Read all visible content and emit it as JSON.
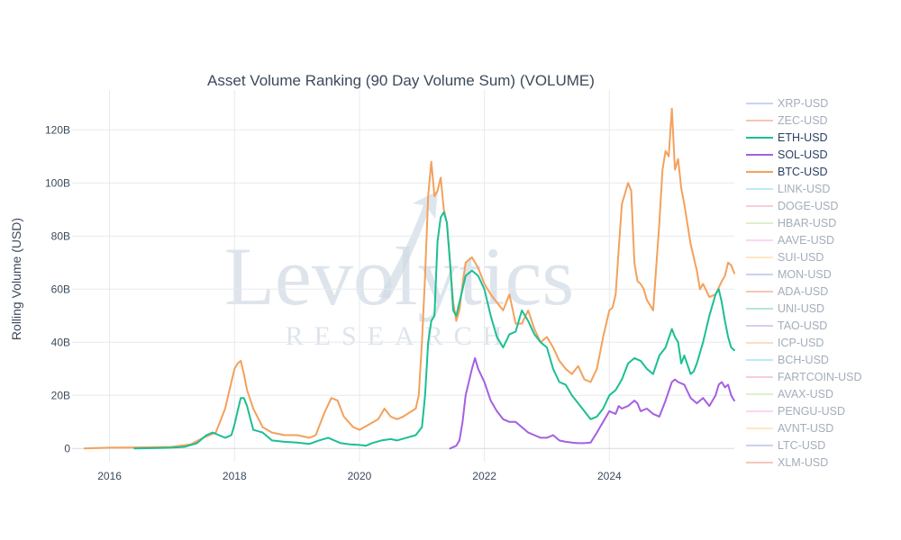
{
  "chart_data": {
    "type": "line",
    "title": "Asset Volume Ranking (90 Day Volume Sum) (VOLUME)",
    "ylabel": "Rolling Volume (USD)",
    "xlabel": "",
    "xlim": [
      2015.4,
      2026.0
    ],
    "ylim": [
      -5,
      135
    ],
    "x_ticks": [
      2016,
      2018,
      2020,
      2022,
      2024
    ],
    "x_tick_labels": [
      "2016",
      "2018",
      "2020",
      "2022",
      "2024"
    ],
    "y_ticks": [
      0,
      20,
      40,
      60,
      80,
      100,
      120
    ],
    "y_tick_labels": [
      "0",
      "20B",
      "40B",
      "60B",
      "80B",
      "100B",
      "120B"
    ],
    "grid": true,
    "legend_position": "right",
    "watermark": {
      "main": "Levolytics",
      "sub": "RESEARCH"
    },
    "legend": [
      {
        "name": "XRP-USD",
        "color": "#b5bfe6",
        "active": false
      },
      {
        "name": "ZEC-USD",
        "color": "#f2ad9e",
        "active": false
      },
      {
        "name": "ETH-USD",
        "color": "#1bbf94",
        "active": true
      },
      {
        "name": "SOL-USD",
        "color": "#a55fe0",
        "active": true
      },
      {
        "name": "BTC-USD",
        "color": "#f3a15c",
        "active": true
      },
      {
        "name": "LINK-USD",
        "color": "#9fe3f0",
        "active": false
      },
      {
        "name": "DOGE-USD",
        "color": "#f4b8c9",
        "active": false
      },
      {
        "name": "HBAR-USD",
        "color": "#cdebb8",
        "active": false
      },
      {
        "name": "AAVE-USD",
        "color": "#f8c6ef",
        "active": false
      },
      {
        "name": "SUI-USD",
        "color": "#fbe0a6",
        "active": false
      },
      {
        "name": "MON-USD",
        "color": "#b5bfe6",
        "active": false
      },
      {
        "name": "ADA-USD",
        "color": "#f2ad9e",
        "active": false
      },
      {
        "name": "UNI-USD",
        "color": "#96dcc5",
        "active": false
      },
      {
        "name": "TAO-USD",
        "color": "#cdb5ef",
        "active": false
      },
      {
        "name": "ICP-USD",
        "color": "#f7cfad",
        "active": false
      },
      {
        "name": "BCH-USD",
        "color": "#9fe3f0",
        "active": false
      },
      {
        "name": "FARTCOIN-USD",
        "color": "#f4b8c9",
        "active": false
      },
      {
        "name": "AVAX-USD",
        "color": "#cdebb8",
        "active": false
      },
      {
        "name": "PENGU-USD",
        "color": "#f8c6ef",
        "active": false
      },
      {
        "name": "AVNT-USD",
        "color": "#fbe0a6",
        "active": false
      },
      {
        "name": "LTC-USD",
        "color": "#b5bfe6",
        "active": false
      },
      {
        "name": "XLM-USD",
        "color": "#f2ad9e",
        "active": false
      }
    ],
    "series": [
      {
        "name": "BTC-USD",
        "color": "#f3a15c",
        "x": [
          2015.6,
          2016.0,
          2016.5,
          2017.0,
          2017.3,
          2017.5,
          2017.7,
          2017.85,
          2017.95,
          2018.0,
          2018.05,
          2018.1,
          2018.15,
          2018.2,
          2018.3,
          2018.45,
          2018.6,
          2018.8,
          2019.0,
          2019.2,
          2019.3,
          2019.45,
          2019.55,
          2019.65,
          2019.75,
          2019.9,
          2020.0,
          2020.15,
          2020.3,
          2020.4,
          2020.5,
          2020.6,
          2020.7,
          2020.9,
          2020.95,
          2021.0,
          2021.05,
          2021.1,
          2021.15,
          2021.2,
          2021.25,
          2021.3,
          2021.35,
          2021.4,
          2021.45,
          2021.5,
          2021.55,
          2021.6,
          2021.65,
          2021.7,
          2021.8,
          2021.9,
          2022.0,
          2022.1,
          2022.2,
          2022.3,
          2022.4,
          2022.5,
          2022.6,
          2022.7,
          2022.8,
          2022.9,
          2023.0,
          2023.1,
          2023.2,
          2023.3,
          2023.4,
          2023.5,
          2023.6,
          2023.7,
          2023.8,
          2023.9,
          2024.0,
          2024.05,
          2024.1,
          2024.15,
          2024.2,
          2024.3,
          2024.35,
          2024.4,
          2024.45,
          2024.5,
          2024.55,
          2024.6,
          2024.7,
          2024.8,
          2024.85,
          2024.9,
          2024.95,
          2025.0,
          2025.05,
          2025.1,
          2025.15,
          2025.2,
          2025.3,
          2025.4,
          2025.45,
          2025.5,
          2025.6,
          2025.7,
          2025.8,
          2025.85,
          2025.9,
          2025.95,
          2026.0
        ],
        "values": [
          0,
          0.3,
          0.4,
          0.6,
          1.5,
          4,
          6,
          15,
          25,
          30,
          32,
          33,
          28,
          22,
          15,
          8,
          6,
          5,
          5,
          4,
          5,
          14,
          19,
          18,
          12,
          8,
          7,
          9,
          11,
          15,
          12,
          11,
          12,
          15,
          20,
          40,
          65,
          95,
          108,
          95,
          97,
          102,
          90,
          85,
          70,
          55,
          48,
          52,
          62,
          70,
          72,
          68,
          62,
          58,
          55,
          52,
          58,
          47,
          47,
          52,
          45,
          40,
          42,
          38,
          33,
          30,
          28,
          31,
          26,
          25,
          30,
          42,
          52,
          53,
          58,
          75,
          92,
          100,
          97,
          70,
          63,
          62,
          60,
          56,
          52,
          85,
          105,
          112,
          110,
          128,
          105,
          109,
          98,
          92,
          77,
          67,
          60,
          62,
          57,
          58,
          63,
          65,
          70,
          69,
          66
        ]
      },
      {
        "name": "ETH-USD",
        "color": "#1bbf94",
        "x": [
          2016.4,
          2016.8,
          2017.0,
          2017.2,
          2017.4,
          2017.55,
          2017.65,
          2017.75,
          2017.85,
          2017.95,
          2018.0,
          2018.05,
          2018.1,
          2018.15,
          2018.2,
          2018.3,
          2018.45,
          2018.6,
          2018.8,
          2019.0,
          2019.2,
          2019.35,
          2019.5,
          2019.6,
          2019.7,
          2019.85,
          2020.0,
          2020.1,
          2020.2,
          2020.35,
          2020.5,
          2020.6,
          2020.75,
          2020.9,
          2021.0,
          2021.05,
          2021.1,
          2021.15,
          2021.2,
          2021.25,
          2021.3,
          2021.35,
          2021.4,
          2021.45,
          2021.5,
          2021.55,
          2021.6,
          2021.65,
          2021.7,
          2021.8,
          2021.9,
          2022.0,
          2022.1,
          2022.2,
          2022.3,
          2022.4,
          2022.5,
          2022.6,
          2022.7,
          2022.8,
          2022.9,
          2023.0,
          2023.1,
          2023.2,
          2023.3,
          2023.4,
          2023.5,
          2023.6,
          2023.7,
          2023.8,
          2023.9,
          2024.0,
          2024.1,
          2024.2,
          2024.3,
          2024.4,
          2024.5,
          2024.6,
          2024.7,
          2024.8,
          2024.9,
          2025.0,
          2025.05,
          2025.1,
          2025.15,
          2025.2,
          2025.3,
          2025.35,
          2025.4,
          2025.5,
          2025.6,
          2025.7,
          2025.75,
          2025.8,
          2025.85,
          2025.9,
          2025.95,
          2026.0
        ],
        "values": [
          0,
          0.2,
          0.3,
          0.6,
          2,
          5,
          6,
          5,
          4,
          5,
          9,
          14,
          19,
          19,
          16,
          7,
          6,
          3,
          2.5,
          2.2,
          1.7,
          3,
          4,
          3,
          2,
          1.5,
          1.3,
          1,
          2,
          3,
          3.5,
          3,
          4,
          5,
          8,
          20,
          40,
          48,
          50,
          78,
          87,
          89,
          85,
          70,
          52,
          50,
          55,
          60,
          65,
          67,
          65,
          60,
          50,
          42,
          38,
          43,
          44,
          52,
          48,
          43,
          40,
          38,
          30,
          25,
          24,
          20,
          17,
          14,
          11,
          12,
          15,
          20,
          22,
          26,
          32,
          34,
          33,
          30,
          28,
          35,
          38,
          45,
          42,
          40,
          32,
          35,
          28,
          29,
          32,
          40,
          50,
          58,
          60,
          55,
          48,
          42,
          38,
          37
        ]
      },
      {
        "name": "SOL-USD",
        "color": "#a55fe0",
        "x": [
          2021.45,
          2021.55,
          2021.6,
          2021.65,
          2021.7,
          2021.8,
          2021.85,
          2021.9,
          2022.0,
          2022.1,
          2022.2,
          2022.3,
          2022.4,
          2022.5,
          2022.6,
          2022.7,
          2022.8,
          2022.9,
          2023.0,
          2023.1,
          2023.2,
          2023.3,
          2023.4,
          2023.5,
          2023.6,
          2023.7,
          2023.8,
          2023.85,
          2023.9,
          2024.0,
          2024.1,
          2024.15,
          2024.2,
          2024.3,
          2024.4,
          2024.45,
          2024.5,
          2024.6,
          2024.7,
          2024.8,
          2024.9,
          2025.0,
          2025.05,
          2025.1,
          2025.2,
          2025.3,
          2025.4,
          2025.5,
          2025.6,
          2025.7,
          2025.75,
          2025.8,
          2025.85,
          2025.9,
          2025.95,
          2026.0
        ],
        "values": [
          0,
          1,
          3,
          10,
          20,
          30,
          34,
          30,
          25,
          18,
          14,
          11,
          10,
          10,
          8,
          6,
          5,
          4,
          4,
          5,
          3,
          2.5,
          2.2,
          2,
          2,
          2.2,
          6,
          8,
          10,
          14,
          13,
          16,
          15,
          16,
          18,
          17,
          14,
          15,
          13,
          12,
          18,
          25,
          26,
          25,
          24,
          19,
          17,
          19,
          16,
          20,
          24,
          25,
          23,
          24,
          20,
          18
        ]
      }
    ]
  }
}
